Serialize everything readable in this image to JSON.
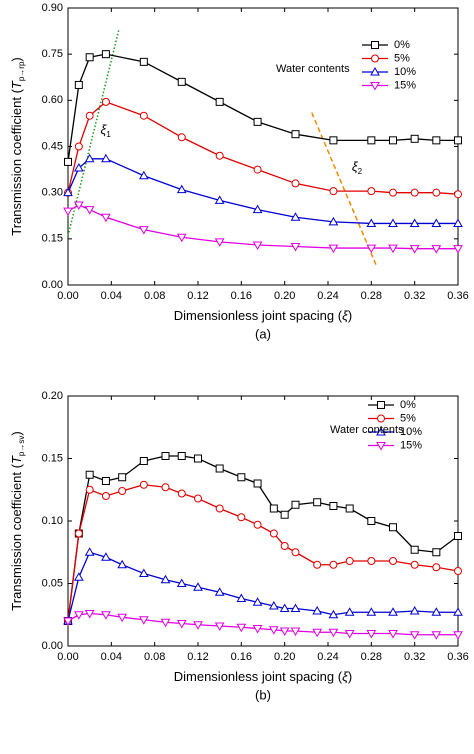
{
  "chart_data": [
    {
      "type": "line",
      "ylabel": [
        "Transmission coefficient (",
        "T",
        "p→rp",
        ")"
      ],
      "xlabel": [
        "Dimensionless joint spacing (",
        "ξ",
        ")"
      ],
      "caption": "(a)",
      "legend_title": "Water contents",
      "legend": "upper right",
      "xlim": [
        0,
        0.36
      ],
      "xticks": [
        {
          "value": 0,
          "label": "0.00"
        },
        {
          "value": 0.04,
          "label": "0.04"
        },
        {
          "value": 0.08,
          "label": "0.08"
        },
        {
          "value": 0.12,
          "label": "0.12"
        },
        {
          "value": 0.16,
          "label": "0.16"
        },
        {
          "value": 0.2,
          "label": "0.20"
        },
        {
          "value": 0.24,
          "label": "0.24"
        },
        {
          "value": 0.28,
          "label": "0.28"
        },
        {
          "value": 0.32,
          "label": "0.32"
        },
        {
          "value": 0.36,
          "label": "0.36"
        }
      ],
      "ylim": [
        0,
        0.9
      ],
      "yticks": [
        {
          "value": 0,
          "label": "0.00"
        },
        {
          "value": 0.15,
          "label": "0.15"
        },
        {
          "value": 0.3,
          "label": "0.30"
        },
        {
          "value": 0.45,
          "label": "0.45"
        },
        {
          "value": 0.6,
          "label": "0.60"
        },
        {
          "value": 0.75,
          "label": "0.75"
        },
        {
          "value": 0.9,
          "label": "0.90"
        }
      ],
      "x": [
        0,
        0.01,
        0.02,
        0.035,
        0.07,
        0.105,
        0.14,
        0.175,
        0.21,
        0.245,
        0.28,
        0.3,
        0.32,
        0.34,
        0.36
      ],
      "series": [
        {
          "name": "0%",
          "color": "#000000",
          "marker": "square",
          "values": [
            0.4,
            0.65,
            0.74,
            0.75,
            0.725,
            0.66,
            0.595,
            0.53,
            0.49,
            0.47,
            0.47,
            0.47,
            0.475,
            0.47,
            0.47
          ]
        },
        {
          "name": "5%",
          "color": "#e00000",
          "marker": "circle",
          "values": [
            0.3,
            0.45,
            0.55,
            0.595,
            0.55,
            0.48,
            0.42,
            0.375,
            0.33,
            0.305,
            0.305,
            0.3,
            0.3,
            0.3,
            0.295
          ]
        },
        {
          "name": "10%",
          "color": "#0000d0",
          "marker": "triangle-up",
          "values": [
            0.3,
            0.38,
            0.41,
            0.41,
            0.355,
            0.31,
            0.275,
            0.245,
            0.22,
            0.205,
            0.2,
            0.2,
            0.2,
            0.2,
            0.2
          ]
        },
        {
          "name": "15%",
          "color": "#e000e0",
          "marker": "triangle-down",
          "values": [
            0.24,
            0.26,
            0.245,
            0.22,
            0.18,
            0.155,
            0.14,
            0.13,
            0.125,
            0.12,
            0.12,
            0.12,
            0.118,
            0.118,
            0.118
          ]
        }
      ],
      "guides": [
        {
          "color": "#1a9a1a",
          "style": "dotted",
          "x": [
            0,
            0.047
          ],
          "y": [
            0.16,
            0.83
          ],
          "label": [
            "ξ",
            "1"
          ]
        },
        {
          "color": "#f08a00",
          "style": "dashed",
          "x": [
            0.225,
            0.285
          ],
          "y": [
            0.56,
            0.06
          ],
          "label": [
            "ξ",
            "2"
          ]
        }
      ]
    },
    {
      "type": "line",
      "ylabel": [
        "Transmission coefficient (",
        "T",
        "p→sv",
        ")"
      ],
      "xlabel": [
        "Dimensionless joint spacing (",
        "ξ",
        ")"
      ],
      "caption": "(b)",
      "legend_title": "Water contents",
      "legend": "upper right",
      "xlim": [
        0,
        0.36
      ],
      "xticks": [
        {
          "value": 0,
          "label": "0.00"
        },
        {
          "value": 0.04,
          "label": "0.04"
        },
        {
          "value": 0.08,
          "label": "0.08"
        },
        {
          "value": 0.12,
          "label": "0.12"
        },
        {
          "value": 0.16,
          "label": "0.16"
        },
        {
          "value": 0.2,
          "label": "0.20"
        },
        {
          "value": 0.24,
          "label": "0.24"
        },
        {
          "value": 0.28,
          "label": "0.28"
        },
        {
          "value": 0.32,
          "label": "0.32"
        },
        {
          "value": 0.36,
          "label": "0.36"
        }
      ],
      "ylim": [
        0,
        0.2
      ],
      "yticks": [
        {
          "value": 0,
          "label": "0.00"
        },
        {
          "value": 0.05,
          "label": "0.05"
        },
        {
          "value": 0.1,
          "label": "0.10"
        },
        {
          "value": 0.15,
          "label": "0.15"
        },
        {
          "value": 0.2,
          "label": "0.20"
        }
      ],
      "x": [
        0,
        0.01,
        0.02,
        0.035,
        0.05,
        0.07,
        0.09,
        0.105,
        0.12,
        0.14,
        0.16,
        0.175,
        0.19,
        0.2,
        0.21,
        0.23,
        0.245,
        0.26,
        0.28,
        0.3,
        0.32,
        0.34,
        0.36
      ],
      "series": [
        {
          "name": "0%",
          "color": "#000000",
          "marker": "square",
          "values": [
            0.02,
            0.09,
            0.137,
            0.132,
            0.135,
            0.148,
            0.152,
            0.152,
            0.15,
            0.142,
            0.135,
            0.13,
            0.11,
            0.105,
            0.113,
            0.115,
            0.112,
            0.11,
            0.1,
            0.095,
            0.077,
            0.075,
            0.088
          ]
        },
        {
          "name": "5%",
          "color": "#e00000",
          "marker": "circle",
          "values": [
            0.02,
            0.09,
            0.125,
            0.12,
            0.124,
            0.129,
            0.127,
            0.122,
            0.118,
            0.11,
            0.103,
            0.097,
            0.09,
            0.08,
            0.075,
            0.065,
            0.065,
            0.068,
            0.068,
            0.068,
            0.065,
            0.063,
            0.06
          ]
        },
        {
          "name": "10%",
          "color": "#0000d0",
          "marker": "triangle-up",
          "values": [
            0.02,
            0.055,
            0.075,
            0.071,
            0.065,
            0.058,
            0.053,
            0.05,
            0.047,
            0.043,
            0.038,
            0.035,
            0.032,
            0.03,
            0.03,
            0.028,
            0.025,
            0.027,
            0.027,
            0.027,
            0.028,
            0.027,
            0.027
          ]
        },
        {
          "name": "15%",
          "color": "#e000e0",
          "marker": "triangle-down",
          "values": [
            0.02,
            0.025,
            0.026,
            0.025,
            0.023,
            0.021,
            0.019,
            0.018,
            0.017,
            0.016,
            0.015,
            0.014,
            0.013,
            0.012,
            0.012,
            0.011,
            0.011,
            0.01,
            0.01,
            0.01,
            0.009,
            0.009,
            0.009
          ]
        }
      ]
    }
  ]
}
